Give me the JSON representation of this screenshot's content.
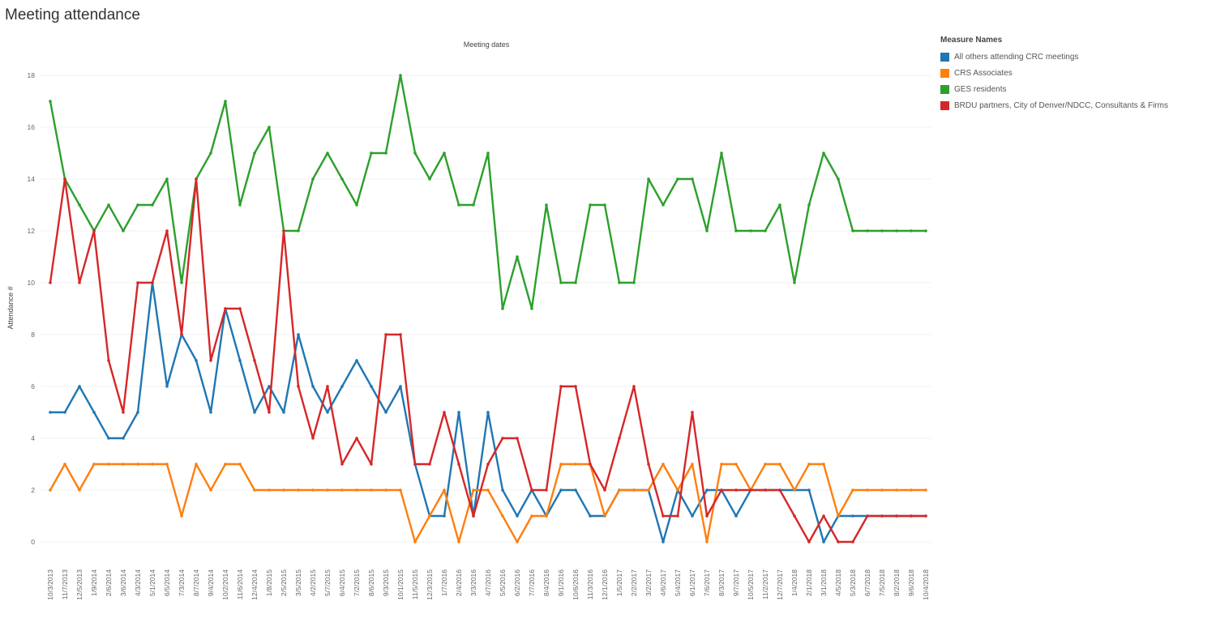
{
  "page": {
    "title": "Meeting attendance"
  },
  "chart_data": {
    "type": "line",
    "title": "Meeting attendance",
    "top_axis_label": "Meeting dates",
    "ylabel": "Attendance #",
    "ylim": [
      0,
      18
    ],
    "yticks": [
      0,
      2,
      4,
      6,
      8,
      10,
      12,
      14,
      16,
      18
    ],
    "grid": true,
    "legend_position": "top-right",
    "legend_title": "Measure Names",
    "x": [
      "10/3/2013",
      "11/7/2013",
      "12/5/2013",
      "1/9/2014",
      "2/6/2014",
      "3/6/2014",
      "4/3/2014",
      "5/1/2014",
      "6/5/2014",
      "7/3/2014",
      "8/7/2014",
      "9/4/2014",
      "10/2/2014",
      "11/6/2014",
      "12/4/2014",
      "1/8/2015",
      "2/5/2015",
      "3/5/2015",
      "4/2/2015",
      "5/7/2015",
      "6/4/2015",
      "7/2/2015",
      "8/6/2015",
      "9/3/2015",
      "10/1/2015",
      "11/5/2015",
      "12/3/2015",
      "1/7/2016",
      "2/4/2016",
      "3/3/2016",
      "4/7/2016",
      "5/5/2016",
      "6/2/2016",
      "7/7/2016",
      "8/4/2016",
      "9/1/2016",
      "10/6/2016",
      "11/3/2016",
      "12/1/2016",
      "1/5/2017",
      "2/2/2017",
      "3/2/2017",
      "4/6/2017",
      "5/4/2017",
      "6/1/2017",
      "7/6/2017",
      "8/3/2017",
      "9/7/2017",
      "10/5/2017",
      "11/2/2017",
      "12/7/2017",
      "1/4/2018",
      "2/1/2018",
      "3/1/2018",
      "4/5/2018",
      "5/3/2018",
      "6/7/2018",
      "7/5/2018",
      "8/2/2018",
      "9/6/2018",
      "10/4/2018"
    ],
    "series": [
      {
        "name": "All others attending CRC meetings",
        "color": "#1f77b4",
        "values": [
          5,
          5,
          6,
          5,
          4,
          4,
          5,
          10,
          6,
          8,
          7,
          5,
          9,
          7,
          5,
          6,
          5,
          8,
          6,
          5,
          6,
          7,
          6,
          5,
          6,
          3,
          1,
          1,
          5,
          1,
          5,
          2,
          1,
          2,
          1,
          2,
          2,
          1,
          1,
          2,
          2,
          2,
          0,
          2,
          1,
          2,
          2,
          1,
          2,
          2,
          2,
          2,
          2,
          0,
          1,
          1,
          1,
          1,
          1,
          1,
          1
        ]
      },
      {
        "name": "CRS Associates",
        "color": "#ff7f0e",
        "values": [
          2,
          3,
          2,
          3,
          3,
          3,
          3,
          3,
          3,
          1,
          3,
          2,
          3,
          3,
          2,
          2,
          2,
          2,
          2,
          2,
          2,
          2,
          2,
          2,
          2,
          0,
          1,
          2,
          0,
          2,
          2,
          1,
          0,
          1,
          1,
          3,
          3,
          3,
          1,
          2,
          2,
          2,
          3,
          2,
          3,
          0,
          3,
          3,
          2,
          3,
          3,
          2,
          3,
          3,
          1,
          2,
          2,
          2,
          2,
          2,
          2
        ]
      },
      {
        "name": "GES residents",
        "color": "#2ca02c",
        "values": [
          17,
          14,
          13,
          12,
          13,
          12,
          13,
          13,
          14,
          10,
          14,
          15,
          17,
          13,
          15,
          16,
          12,
          12,
          14,
          15,
          14,
          13,
          15,
          15,
          18,
          15,
          14,
          15,
          13,
          13,
          15,
          9,
          11,
          9,
          13,
          10,
          10,
          13,
          13,
          10,
          10,
          14,
          13,
          14,
          14,
          12,
          15,
          12,
          12,
          12,
          13,
          10,
          13,
          15,
          14,
          12,
          12,
          12,
          12,
          12,
          12
        ]
      },
      {
        "name": "BRDU partners, City of Denver/NDCC, Consultants & Firms",
        "color": "#d62728",
        "values": [
          10,
          14,
          10,
          12,
          7,
          5,
          10,
          10,
          12,
          8,
          14,
          7,
          9,
          9,
          7,
          5,
          12,
          6,
          4,
          6,
          3,
          4,
          3,
          8,
          8,
          3,
          3,
          5,
          3,
          1,
          3,
          4,
          4,
          2,
          2,
          6,
          6,
          3,
          2,
          4,
          6,
          3,
          1,
          1,
          5,
          1,
          2,
          2,
          2,
          2,
          2,
          1,
          0,
          1,
          0,
          0,
          1,
          1,
          1,
          1,
          1
        ]
      }
    ]
  }
}
